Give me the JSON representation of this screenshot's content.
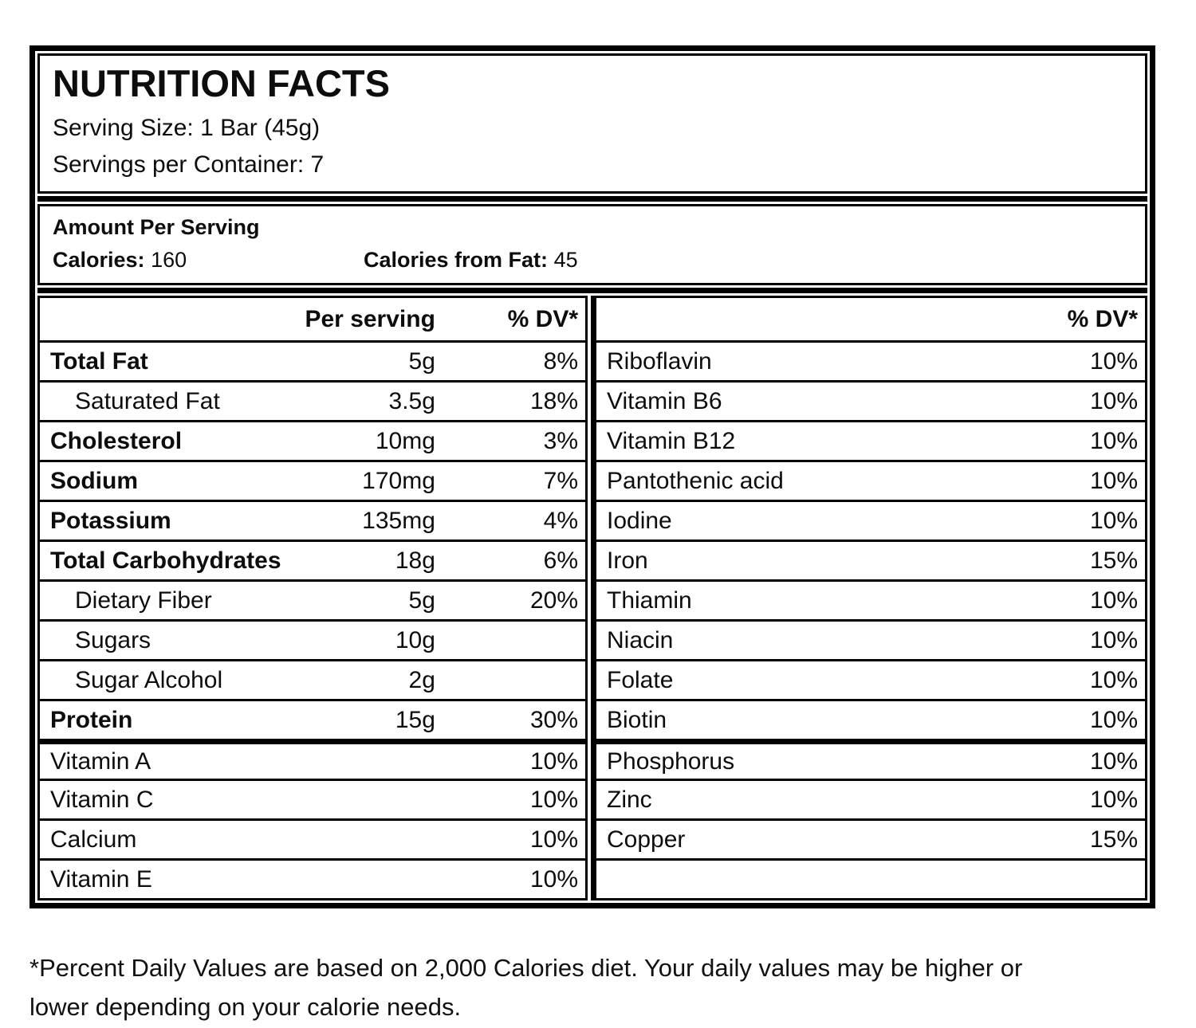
{
  "header": {
    "title": "NUTRITION FACTS",
    "serving_size": "Serving Size: 1 Bar (45g)",
    "servings_per_container": "Servings per Container: 7"
  },
  "amount_section": {
    "heading": "Amount Per Serving",
    "calories_label": "Calories:",
    "calories_value": "160",
    "calories_from_fat_label": "Calories from Fat:",
    "calories_from_fat_value": "45"
  },
  "left_table": {
    "col_amount": "Per serving",
    "col_dv": "% DV*",
    "rows": [
      {
        "label": "Total Fat",
        "amount": "5g",
        "dv": "8%"
      },
      {
        "label": "Saturated Fat",
        "amount": "3.5g",
        "dv": "18%"
      },
      {
        "label": "Cholesterol",
        "amount": "10mg",
        "dv": "3%"
      },
      {
        "label": "Sodium",
        "amount": "170mg",
        "dv": "7%"
      },
      {
        "label": "Potassium",
        "amount": "135mg",
        "dv": "4%"
      },
      {
        "label": "Total Carbohydrates",
        "amount": "18g",
        "dv": "6%"
      },
      {
        "label": "Dietary Fiber",
        "amount": "5g",
        "dv": "20%"
      },
      {
        "label": "Sugars",
        "amount": "10g",
        "dv": ""
      },
      {
        "label": "Sugar Alcohol",
        "amount": "2g",
        "dv": ""
      },
      {
        "label": "Protein",
        "amount": "15g",
        "dv": "30%"
      }
    ],
    "vitamin_rows": [
      {
        "label": "Vitamin A",
        "dv": "10%"
      },
      {
        "label": "Vitamin C",
        "dv": "10%"
      },
      {
        "label": "Calcium",
        "dv": "10%"
      },
      {
        "label": "Vitamin E",
        "dv": "10%"
      }
    ]
  },
  "right_table": {
    "col_dv": "% DV*",
    "rows": [
      {
        "label": "Riboflavin",
        "dv": "10%"
      },
      {
        "label": "Vitamin B6",
        "dv": "10%"
      },
      {
        "label": "Vitamin B12",
        "dv": "10%"
      },
      {
        "label": "Pantothenic acid",
        "dv": "10%"
      },
      {
        "label": "Iodine",
        "dv": "10%"
      },
      {
        "label": "Iron",
        "dv": "15%"
      },
      {
        "label": "Thiamin",
        "dv": "10%"
      },
      {
        "label": "Niacin",
        "dv": "10%"
      },
      {
        "label": "Folate",
        "dv": "10%"
      },
      {
        "label": "Biotin",
        "dv": "10%"
      }
    ],
    "mineral_rows": [
      {
        "label": "Phosphorus",
        "dv": "10%"
      },
      {
        "label": "Zinc",
        "dv": "10%"
      },
      {
        "label": "Copper",
        "dv": "15%"
      },
      {
        "label": "",
        "dv": ""
      }
    ]
  },
  "footnote": {
    "line1": "*Percent Daily Values are based on 2,000 Calories diet. Your daily values may be higher or",
    "line2": "lower depending on your calorie needs."
  }
}
